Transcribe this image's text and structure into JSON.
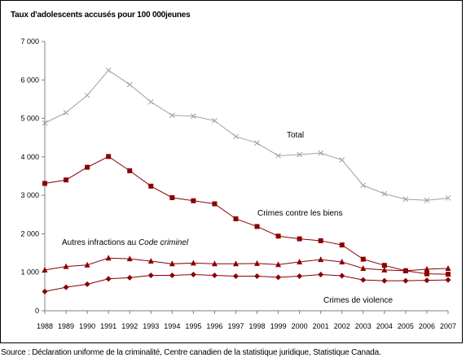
{
  "chart_data": {
    "type": "line",
    "title": "Taux d'adolescents accusés pour 100 000jeunes",
    "xlabel": "",
    "ylabel": "",
    "ylim": [
      0,
      7000
    ],
    "yticks": [
      0,
      1000,
      2000,
      3000,
      4000,
      5000,
      6000,
      7000
    ],
    "ytick_labels": [
      "0",
      "1 000",
      "2 000",
      "3 000",
      "4 000",
      "5 000",
      "6 000",
      "7 000"
    ],
    "x": [
      "1988",
      "1989",
      "1990",
      "1991",
      "1992",
      "1993",
      "1994",
      "1995",
      "1996",
      "1997",
      "1998",
      "1999",
      "2000",
      "2001",
      "2002",
      "2003",
      "2004",
      "2005",
      "2006",
      "2007"
    ],
    "grid": false,
    "series": [
      {
        "name": "Total",
        "color": "#a0a0a0",
        "marker": "x",
        "values": [
          4880,
          5150,
          5600,
          6250,
          5880,
          5430,
          5080,
          5060,
          4940,
          4530,
          4360,
          4030,
          4060,
          4100,
          3920,
          3260,
          3040,
          2900,
          2870,
          2930
        ]
      },
      {
        "name": "Crimes contre les biens",
        "color": "#8b0000",
        "marker": "square",
        "values": [
          3310,
          3400,
          3730,
          4010,
          3640,
          3240,
          2940,
          2860,
          2780,
          2390,
          2190,
          1940,
          1870,
          1820,
          1710,
          1340,
          1180,
          1040,
          960,
          950
        ]
      },
      {
        "name": "Autres infractions au Code criminel",
        "color": "#8b0000",
        "marker": "triangle",
        "values": [
          1060,
          1150,
          1190,
          1370,
          1350,
          1290,
          1220,
          1240,
          1220,
          1220,
          1230,
          1200,
          1270,
          1330,
          1270,
          1100,
          1060,
          1040,
          1080,
          1100
        ]
      },
      {
        "name": "Crimes de violence",
        "color": "#8b0000",
        "marker": "diamond",
        "values": [
          500,
          610,
          690,
          830,
          860,
          920,
          920,
          940,
          920,
          900,
          900,
          870,
          900,
          940,
          910,
          800,
          780,
          780,
          790,
          800
        ]
      }
    ],
    "annotations": {
      "total": "Total",
      "property": "Crimes contre les biens",
      "other_prefix": "Autres infractions au ",
      "other_italic": "Code criminel",
      "violence": "Crimes de violence"
    }
  },
  "source": "Source : Déclaration uniforme de la criminalité, Centre canadien de la statistique juridique, Statistique Canada."
}
